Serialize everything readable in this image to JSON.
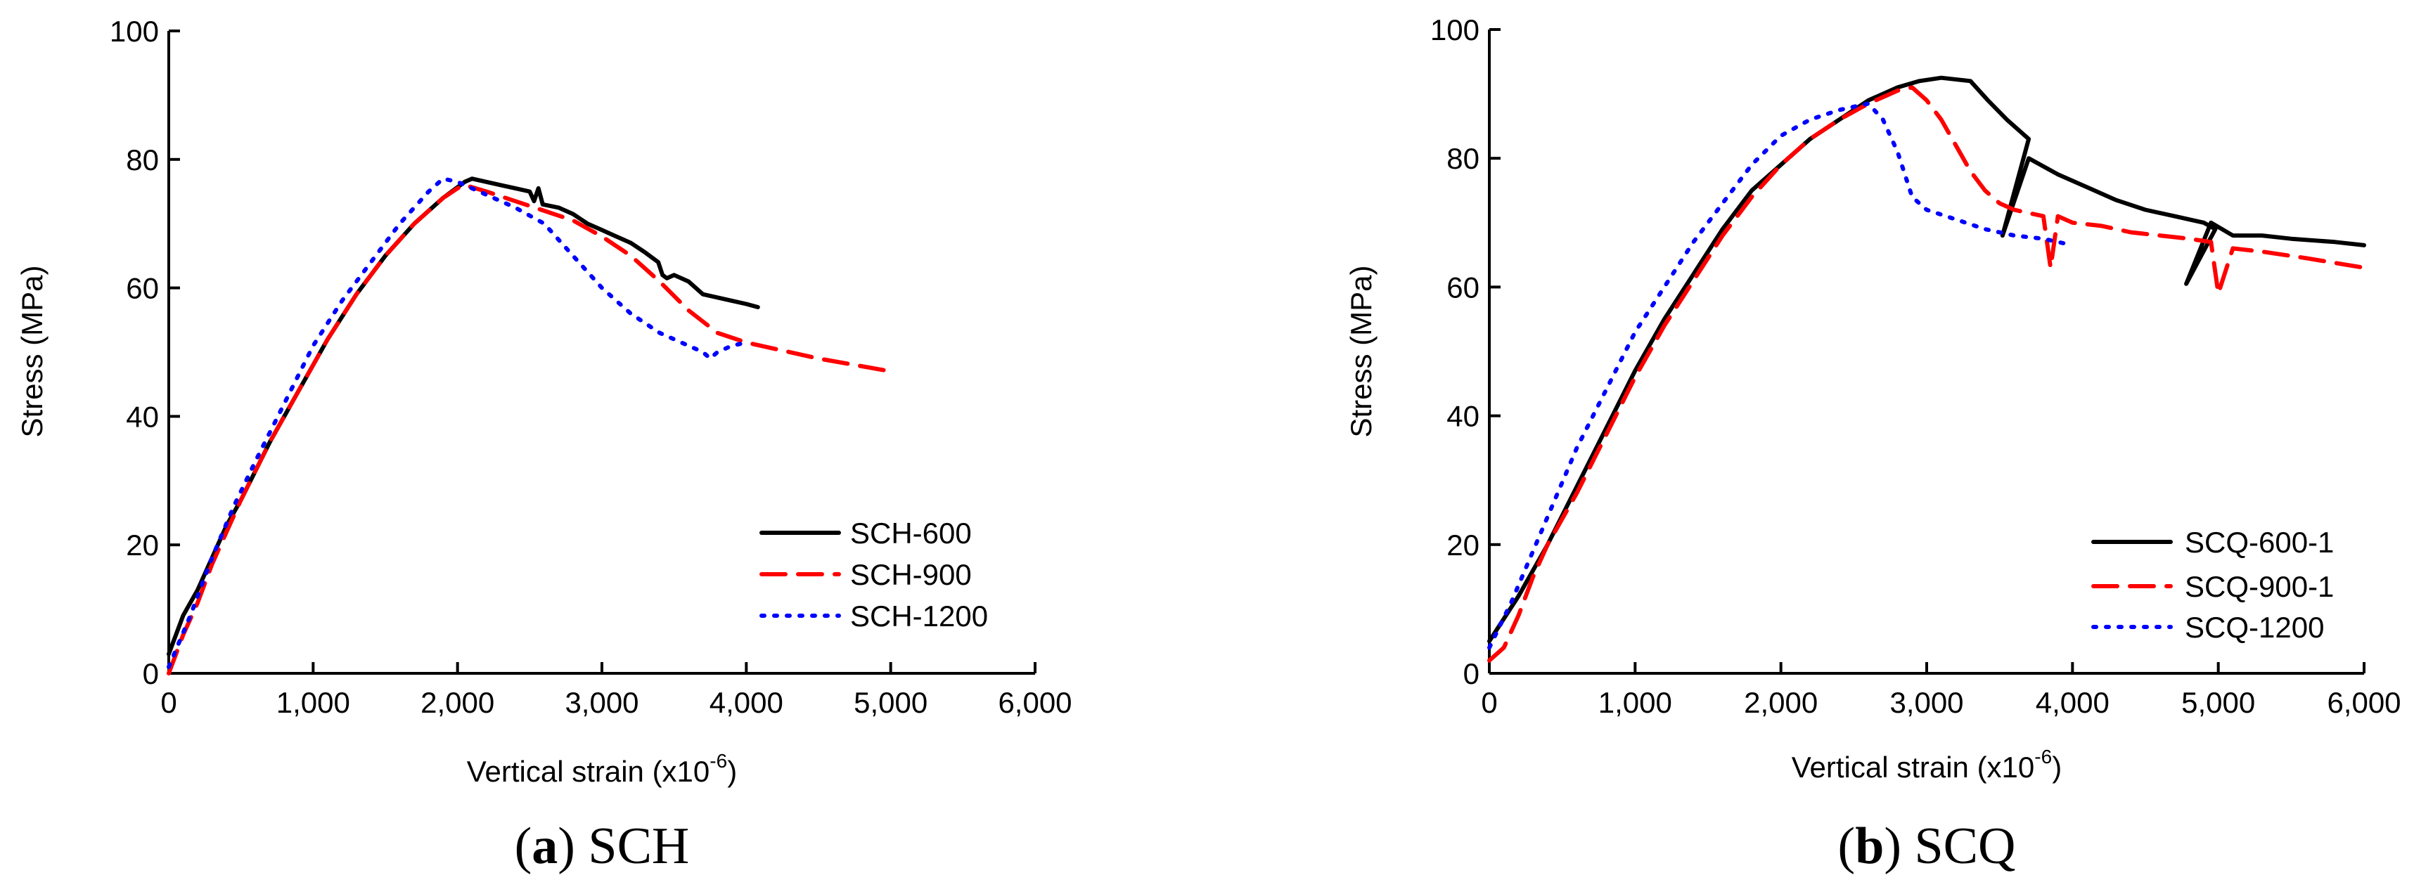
{
  "chart_data": [
    {
      "type": "line",
      "caption": {
        "open": "(",
        "letter": "a",
        "close": ")",
        "text": " SCH"
      },
      "xlabel": {
        "base": "Vertical strain (x10",
        "sup": "-6",
        "tail": ")"
      },
      "ylabel": "Stress (MPa)",
      "xlim": [
        0,
        6000
      ],
      "ylim": [
        0,
        100
      ],
      "xticks": [
        0,
        1000,
        2000,
        3000,
        4000,
        5000,
        6000
      ],
      "xtick_labels": [
        "0",
        "1,000",
        "2,000",
        "3,000",
        "4,000",
        "5,000",
        "6,000"
      ],
      "yticks": [
        0,
        20,
        40,
        60,
        80,
        100
      ],
      "ytick_labels": [
        "0",
        "20",
        "40",
        "60",
        "80",
        "100"
      ],
      "legend_position": "bottom-right",
      "series": [
        {
          "name": "SCH-600",
          "color": "#000000",
          "style": "solid",
          "points": [
            [
              0,
              3
            ],
            [
              100,
              9
            ],
            [
              200,
              13
            ],
            [
              300,
              18
            ],
            [
              400,
              23
            ],
            [
              500,
              27
            ],
            [
              700,
              36
            ],
            [
              900,
              44
            ],
            [
              1100,
              52
            ],
            [
              1300,
              59
            ],
            [
              1500,
              65
            ],
            [
              1700,
              70
            ],
            [
              1900,
              74
            ],
            [
              2050,
              76.5
            ],
            [
              2100,
              77
            ],
            [
              2200,
              76.5
            ],
            [
              2300,
              76
            ],
            [
              2400,
              75.5
            ],
            [
              2500,
              75
            ],
            [
              2530,
              73.5
            ],
            [
              2560,
              75.5
            ],
            [
              2590,
              73
            ],
            [
              2700,
              72.5
            ],
            [
              2800,
              71.5
            ],
            [
              2900,
              70
            ],
            [
              3000,
              69
            ],
            [
              3100,
              68
            ],
            [
              3200,
              67
            ],
            [
              3300,
              65.5
            ],
            [
              3390,
              64
            ],
            [
              3420,
              62
            ],
            [
              3450,
              61.5
            ],
            [
              3500,
              62
            ],
            [
              3600,
              61
            ],
            [
              3700,
              59
            ],
            [
              3800,
              58.5
            ],
            [
              3900,
              58
            ],
            [
              4000,
              57.5
            ],
            [
              4080,
              57
            ]
          ]
        },
        {
          "name": "SCH-900",
          "color": "#ff0000",
          "style": "dashed",
          "points": [
            [
              0,
              0
            ],
            [
              100,
              6
            ],
            [
              200,
              11
            ],
            [
              300,
              17
            ],
            [
              400,
              22
            ],
            [
              500,
              27
            ],
            [
              700,
              36
            ],
            [
              900,
              44
            ],
            [
              1100,
              52
            ],
            [
              1300,
              59
            ],
            [
              1500,
              65
            ],
            [
              1700,
              70
            ],
            [
              1900,
              74
            ],
            [
              2000,
              75.5
            ],
            [
              2050,
              76
            ],
            [
              2200,
              75
            ],
            [
              2400,
              73.5
            ],
            [
              2600,
              72
            ],
            [
              2800,
              70.5
            ],
            [
              3000,
              68
            ],
            [
              3200,
              65
            ],
            [
              3400,
              61
            ],
            [
              3600,
              56.5
            ],
            [
              3800,
              53
            ],
            [
              4000,
              51.5
            ],
            [
              4500,
              49
            ],
            [
              5000,
              47
            ]
          ]
        },
        {
          "name": "SCH-1200",
          "color": "#0000ff",
          "style": "dotted",
          "points": [
            [
              0,
              1
            ],
            [
              150,
              9
            ],
            [
              300,
              18
            ],
            [
              450,
              26
            ],
            [
              600,
              33
            ],
            [
              800,
              42
            ],
            [
              1000,
              51
            ],
            [
              1200,
              58
            ],
            [
              1400,
              64
            ],
            [
              1600,
              70
            ],
            [
              1800,
              75
            ],
            [
              1900,
              77
            ],
            [
              2000,
              76.5
            ],
            [
              2200,
              74.5
            ],
            [
              2400,
              72.5
            ],
            [
              2600,
              70
            ],
            [
              2800,
              65
            ],
            [
              3000,
              60
            ],
            [
              3200,
              56
            ],
            [
              3400,
              53
            ],
            [
              3600,
              51
            ],
            [
              3700,
              50
            ],
            [
              3750,
              49
            ],
            [
              3800,
              50
            ],
            [
              3900,
              51
            ],
            [
              4000,
              51.5
            ]
          ]
        }
      ]
    },
    {
      "type": "line",
      "caption": {
        "open": "(",
        "letter": "b",
        "close": ")",
        "text": " SCQ"
      },
      "xlabel": {
        "base": "Vertical strain (x10",
        "sup": "-6",
        "tail": ")"
      },
      "ylabel": "Stress (MPa)",
      "xlim": [
        0,
        6000
      ],
      "ylim": [
        0,
        100
      ],
      "xticks": [
        0,
        1000,
        2000,
        3000,
        4000,
        5000,
        6000
      ],
      "xtick_labels": [
        "0",
        "1,000",
        "2,000",
        "3,000",
        "4,000",
        "5,000",
        "6,000"
      ],
      "yticks": [
        0,
        20,
        40,
        60,
        80,
        100
      ],
      "ytick_labels": [
        "0",
        "20",
        "40",
        "60",
        "80",
        "100"
      ],
      "legend_position": "bottom-right",
      "series": [
        {
          "name": "SCQ-600-1",
          "color": "#000000",
          "style": "solid",
          "points": [
            [
              0,
              5
            ],
            [
              200,
              12
            ],
            [
              400,
              20
            ],
            [
              600,
              29
            ],
            [
              800,
              38
            ],
            [
              1000,
              47
            ],
            [
              1200,
              55
            ],
            [
              1400,
              62
            ],
            [
              1600,
              69
            ],
            [
              1800,
              75
            ],
            [
              2000,
              79
            ],
            [
              2200,
              83
            ],
            [
              2400,
              86
            ],
            [
              2600,
              89
            ],
            [
              2800,
              91
            ],
            [
              2950,
              92
            ],
            [
              3100,
              92.5
            ],
            [
              3300,
              92
            ],
            [
              3420,
              89
            ],
            [
              3550,
              86
            ],
            [
              3700,
              83
            ],
            [
              3520,
              68
            ],
            [
              3700,
              80
            ],
            [
              3900,
              77.5
            ],
            [
              4100,
              75.5
            ],
            [
              4300,
              73.5
            ],
            [
              4500,
              72
            ],
            [
              4700,
              71
            ],
            [
              4900,
              70
            ],
            [
              4980,
              69
            ],
            [
              4780,
              60.5
            ],
            [
              4950,
              70
            ],
            [
              5100,
              68
            ],
            [
              5300,
              68
            ],
            [
              5500,
              67.5
            ],
            [
              5800,
              67
            ],
            [
              6000,
              66.5
            ]
          ]
        },
        {
          "name": "SCQ-900-1",
          "color": "#ff0000",
          "style": "dashed",
          "points": [
            [
              0,
              2
            ],
            [
              100,
              4
            ],
            [
              200,
              9
            ],
            [
              300,
              15
            ],
            [
              400,
              20
            ],
            [
              600,
              28
            ],
            [
              800,
              37
            ],
            [
              1000,
              46
            ],
            [
              1200,
              54
            ],
            [
              1400,
              61
            ],
            [
              1600,
              68
            ],
            [
              1800,
              74
            ],
            [
              2000,
              79
            ],
            [
              2200,
              83
            ],
            [
              2400,
              86
            ],
            [
              2600,
              88.5
            ],
            [
              2800,
              90.5
            ],
            [
              2900,
              91
            ],
            [
              3000,
              89
            ],
            [
              3100,
              86
            ],
            [
              3200,
              82
            ],
            [
              3300,
              78
            ],
            [
              3400,
              75
            ],
            [
              3500,
              73
            ],
            [
              3600,
              72
            ],
            [
              3700,
              71.5
            ],
            [
              3800,
              71
            ],
            [
              3850,
              63
            ],
            [
              3900,
              71
            ],
            [
              4000,
              70
            ],
            [
              4200,
              69.5
            ],
            [
              4400,
              68.5
            ],
            [
              4600,
              68
            ],
            [
              4800,
              67.5
            ],
            [
              4950,
              67
            ],
            [
              5000,
              59
            ],
            [
              5100,
              66
            ],
            [
              5300,
              65.5
            ],
            [
              5600,
              64.5
            ],
            [
              6000,
              63
            ]
          ]
        },
        {
          "name": "SCQ-1200",
          "color": "#0000ff",
          "style": "dotted",
          "points": [
            [
              0,
              4
            ],
            [
              150,
              11
            ],
            [
              300,
              19
            ],
            [
              450,
              27
            ],
            [
              600,
              35
            ],
            [
              800,
              44
            ],
            [
              1000,
              53
            ],
            [
              1200,
              60
            ],
            [
              1400,
              67
            ],
            [
              1600,
              73
            ],
            [
              1800,
              79
            ],
            [
              2000,
              83.5
            ],
            [
              2200,
              86
            ],
            [
              2400,
              87.5
            ],
            [
              2600,
              88.5
            ],
            [
              2700,
              86
            ],
            [
              2800,
              81
            ],
            [
              2900,
              74
            ],
            [
              3000,
              72
            ],
            [
              3200,
              70.5
            ],
            [
              3400,
              69
            ],
            [
              3600,
              68
            ],
            [
              3800,
              67.5
            ],
            [
              4000,
              66.5
            ]
          ]
        }
      ]
    }
  ]
}
